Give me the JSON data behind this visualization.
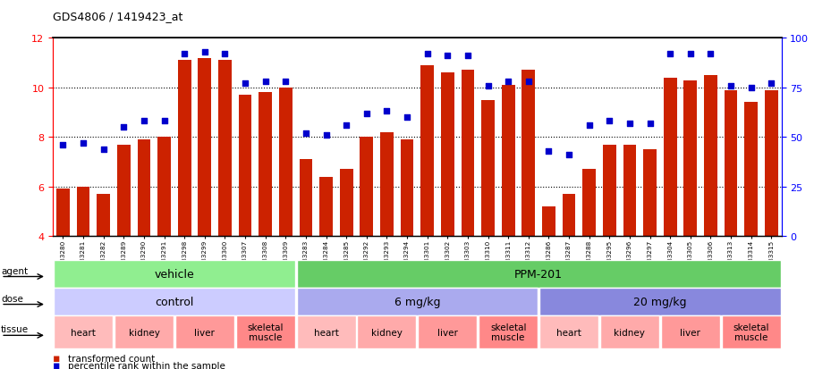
{
  "title": "GDS4806 / 1419423_at",
  "samples": [
    "GSM783280",
    "GSM783281",
    "GSM783282",
    "GSM783289",
    "GSM783290",
    "GSM783291",
    "GSM783298",
    "GSM783299",
    "GSM783300",
    "GSM783307",
    "GSM783308",
    "GSM783309",
    "GSM783283",
    "GSM783284",
    "GSM783285",
    "GSM783292",
    "GSM783293",
    "GSM783294",
    "GSM783301",
    "GSM783302",
    "GSM783303",
    "GSM783310",
    "GSM783311",
    "GSM783312",
    "GSM783286",
    "GSM783287",
    "GSM783288",
    "GSM783295",
    "GSM783296",
    "GSM783297",
    "GSM783304",
    "GSM783305",
    "GSM783306",
    "GSM783313",
    "GSM783314",
    "GSM783315"
  ],
  "bar_values": [
    5.9,
    6.0,
    5.7,
    7.7,
    7.9,
    8.0,
    11.1,
    11.2,
    11.1,
    9.7,
    9.8,
    10.0,
    7.1,
    6.4,
    6.7,
    8.0,
    8.2,
    7.9,
    10.9,
    10.6,
    10.7,
    9.5,
    10.1,
    10.7,
    5.2,
    5.7,
    6.7,
    7.7,
    7.7,
    7.5,
    10.4,
    10.3,
    10.5,
    9.9,
    9.4,
    9.9
  ],
  "dot_percentiles": [
    46,
    47,
    44,
    55,
    58,
    58,
    92,
    93,
    92,
    77,
    78,
    78,
    52,
    51,
    56,
    62,
    63,
    60,
    92,
    91,
    91,
    76,
    78,
    78,
    43,
    41,
    56,
    58,
    57,
    57,
    92,
    92,
    92,
    76,
    75,
    77
  ],
  "bar_color": "#cc2200",
  "dot_color": "#0000cc",
  "ylim_left": [
    4,
    12
  ],
  "ylim_right": [
    0,
    100
  ],
  "yticks_left": [
    4,
    6,
    8,
    10,
    12
  ],
  "yticks_right": [
    0,
    25,
    50,
    75,
    100
  ],
  "agent_groups": [
    {
      "label": "vehicle",
      "start": 0,
      "end": 12,
      "color": "#90ee90"
    },
    {
      "label": "PPM-201",
      "start": 12,
      "end": 36,
      "color": "#66cc66"
    }
  ],
  "dose_groups": [
    {
      "label": "control",
      "start": 0,
      "end": 12,
      "color": "#ccccff"
    },
    {
      "label": "6 mg/kg",
      "start": 12,
      "end": 24,
      "color": "#aaaaee"
    },
    {
      "label": "20 mg/kg",
      "start": 24,
      "end": 36,
      "color": "#8888dd"
    }
  ],
  "tissue_groups": [
    {
      "label": "heart",
      "start": 0,
      "end": 3,
      "color": "#ffbbbb"
    },
    {
      "label": "kidney",
      "start": 3,
      "end": 6,
      "color": "#ffaaaa"
    },
    {
      "label": "liver",
      "start": 6,
      "end": 9,
      "color": "#ff9999"
    },
    {
      "label": "skeletal\nmuscle",
      "start": 9,
      "end": 12,
      "color": "#ff8888"
    },
    {
      "label": "heart",
      "start": 12,
      "end": 15,
      "color": "#ffbbbb"
    },
    {
      "label": "kidney",
      "start": 15,
      "end": 18,
      "color": "#ffaaaa"
    },
    {
      "label": "liver",
      "start": 18,
      "end": 21,
      "color": "#ff9999"
    },
    {
      "label": "skeletal\nmuscle",
      "start": 21,
      "end": 24,
      "color": "#ff8888"
    },
    {
      "label": "heart",
      "start": 24,
      "end": 27,
      "color": "#ffbbbb"
    },
    {
      "label": "kidney",
      "start": 27,
      "end": 30,
      "color": "#ffaaaa"
    },
    {
      "label": "liver",
      "start": 30,
      "end": 33,
      "color": "#ff9999"
    },
    {
      "label": "skeletal\nmuscle",
      "start": 33,
      "end": 36,
      "color": "#ff8888"
    }
  ]
}
